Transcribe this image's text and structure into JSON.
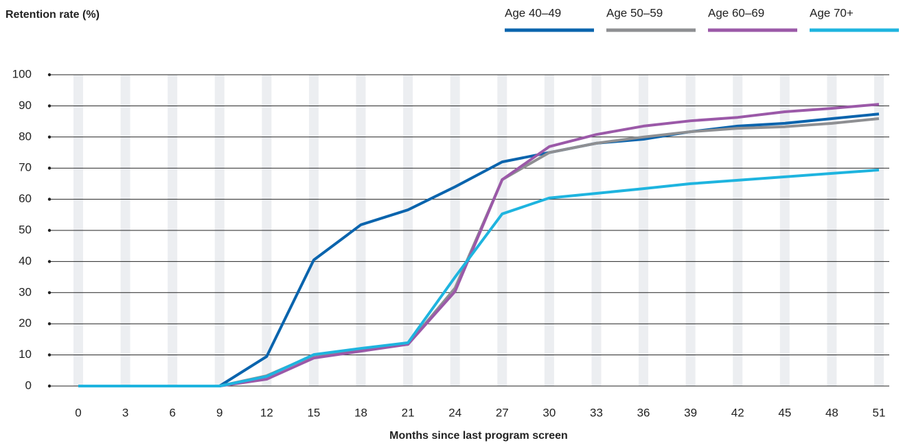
{
  "chart_data": {
    "type": "line",
    "y_label": "Retention rate (%)",
    "x_label": "Months since last program screen",
    "x": [
      0,
      3,
      6,
      9,
      12,
      15,
      18,
      21,
      24,
      27,
      30,
      33,
      36,
      39,
      42,
      45,
      48,
      51
    ],
    "xlim": [
      0,
      51
    ],
    "xticks": [
      0,
      3,
      6,
      9,
      12,
      15,
      18,
      21,
      24,
      27,
      30,
      33,
      36,
      39,
      42,
      45,
      48,
      51
    ],
    "ylim": [
      0,
      100
    ],
    "yticks": [
      0,
      10,
      20,
      30,
      40,
      50,
      60,
      70,
      80,
      90,
      100
    ],
    "grid": true,
    "legend_position": "top-right",
    "series": [
      {
        "name": "Age 40–49",
        "color": "#0a64ad",
        "values": [
          0,
          0,
          0,
          0,
          9.5,
          40.5,
          51.8,
          56.6,
          64,
          72,
          75,
          78,
          79.3,
          81.7,
          83.5,
          84.4,
          85.9,
          87.4
        ]
      },
      {
        "name": "Age 50–59",
        "color": "#8e8f92",
        "values": [
          0,
          0,
          0,
          0,
          3.3,
          9.9,
          11.7,
          13.4,
          31.5,
          66.3,
          75,
          78,
          80,
          81.7,
          82.8,
          83.3,
          84.4,
          85.9
        ]
      },
      {
        "name": "Age 60–69",
        "color": "#9b59a8",
        "values": [
          0,
          0,
          0,
          0,
          2.2,
          9,
          11.2,
          13.4,
          30.4,
          66.3,
          76.9,
          80.8,
          83.5,
          85.2,
          86.3,
          88.1,
          89.2,
          90.5
        ]
      },
      {
        "name": "Age 70+",
        "color": "#1eb4df",
        "values": [
          0,
          0,
          0,
          0,
          3.1,
          10.1,
          12.1,
          13.9,
          35,
          55.3,
          60.4,
          61.9,
          63.4,
          65,
          66.1,
          67.2,
          68.3,
          69.4
        ]
      }
    ]
  }
}
